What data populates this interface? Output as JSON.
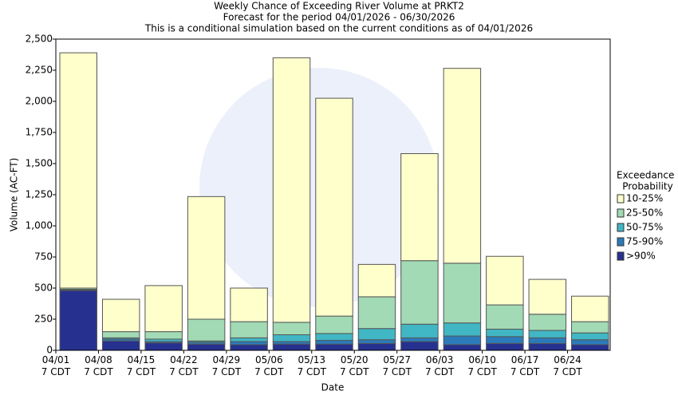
{
  "chart_data": {
    "type": "stacked_bar",
    "title": "Weekly Chance of Exceeding River Volume at PRKT2",
    "subtitle": [
      "Forecast for the period 04/01/2026 - 06/30/2026",
      "This is a conditional simulation based on the current conditions as of 04/01/2026"
    ],
    "x_label": "Date",
    "y_label": "Volume (AC-FT)",
    "categories": [
      "04/01\n7 CDT",
      "04/08\n7 CDT",
      "04/15\n7 CDT",
      "04/22\n7 CDT",
      "04/29\n7 CDT",
      "05/06\n7 CDT",
      "05/13\n7 CDT",
      "05/20\n7 CDT",
      "05/27\n7 CDT",
      "06/03\n7 CDT",
      "06/10\n7 CDT",
      "06/17\n7 CDT",
      "06/24\n7 CDT"
    ],
    "legend_title": [
      "Exceedance",
      "Probability"
    ],
    "legend_position": "right",
    "series": [
      {
        "name": ">90%",
        "color": "#26318f",
        "values": [
          480,
          75,
          60,
          50,
          45,
          50,
          50,
          55,
          70,
          45,
          55,
          55,
          45
        ]
      },
      {
        "name": "75-90%",
        "color": "#2b7bba",
        "values": [
          5,
          15,
          10,
          15,
          25,
          20,
          30,
          30,
          30,
          70,
          55,
          45,
          40
        ]
      },
      {
        "name": "50-75%",
        "color": "#41b6c4",
        "values": [
          5,
          10,
          20,
          10,
          30,
          55,
          55,
          90,
          110,
          105,
          60,
          60,
          55
        ]
      },
      {
        "name": "25-50%",
        "color": "#a1dab4",
        "values": [
          10,
          50,
          60,
          175,
          130,
          100,
          140,
          255,
          510,
          480,
          195,
          130,
          90
        ]
      },
      {
        "name": "10-25%",
        "color": "#ffffcc",
        "values": [
          1890,
          260,
          370,
          985,
          270,
          2125,
          1750,
          260,
          860,
          1565,
          390,
          280,
          205
        ]
      }
    ],
    "ylim": [
      0,
      2500
    ],
    "yticks": [
      0,
      250,
      500,
      750,
      {
        "value": 1000,
        "label": "1,000"
      },
      {
        "value": 1250,
        "label": "1,250"
      },
      {
        "value": 1500,
        "label": "1,500"
      },
      {
        "value": 1750,
        "label": "1,750"
      },
      {
        "value": 2000,
        "label": "2,000"
      },
      {
        "value": 2250,
        "label": "2,250"
      },
      {
        "value": 2500,
        "label": "2,500"
      }
    ],
    "grid": false
  }
}
